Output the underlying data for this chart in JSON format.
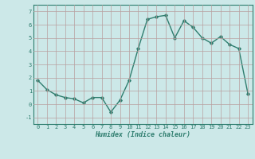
{
  "x": [
    0,
    1,
    2,
    3,
    4,
    5,
    6,
    7,
    8,
    9,
    10,
    11,
    12,
    13,
    14,
    15,
    16,
    17,
    18,
    19,
    20,
    21,
    22,
    23
  ],
  "y": [
    1.8,
    1.1,
    0.7,
    0.5,
    0.4,
    0.1,
    0.5,
    0.5,
    -0.6,
    0.3,
    1.8,
    4.2,
    6.4,
    6.6,
    6.7,
    5.0,
    6.3,
    5.8,
    5.0,
    4.6,
    5.1,
    4.5,
    4.2,
    0.8
  ],
  "xlabel": "Humidex (Indice chaleur)",
  "xlim": [
    -0.5,
    23.5
  ],
  "ylim": [
    -1.5,
    7.5
  ],
  "yticks": [
    -1,
    0,
    1,
    2,
    3,
    4,
    5,
    6,
    7
  ],
  "xticks": [
    0,
    1,
    2,
    3,
    4,
    5,
    6,
    7,
    8,
    9,
    10,
    11,
    12,
    13,
    14,
    15,
    16,
    17,
    18,
    19,
    20,
    21,
    22,
    23
  ],
  "line_color": "#2e7d6e",
  "marker": "D",
  "marker_size": 1.8,
  "bg_color": "#cce8e8",
  "grid_color": "#b8a0a0",
  "line_width": 1.0
}
